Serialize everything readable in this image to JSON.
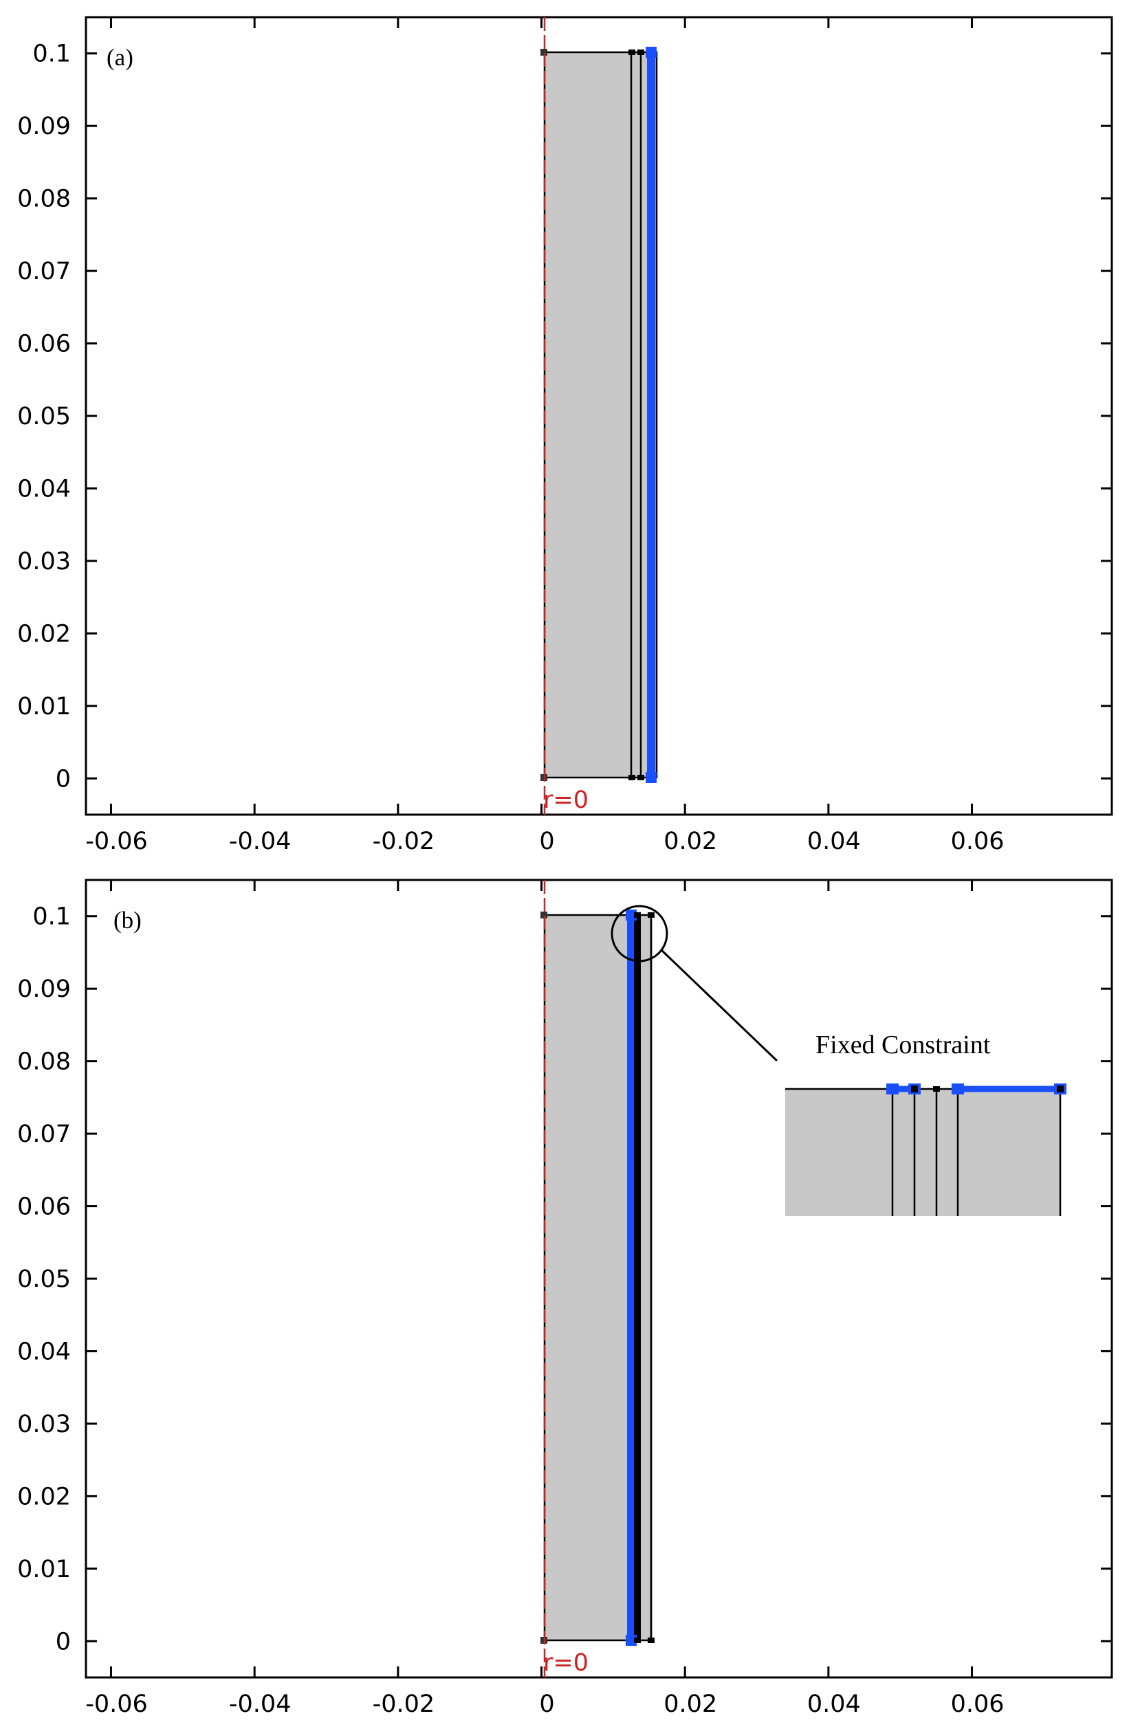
{
  "figure": {
    "x_ticks": [
      "-0.06",
      "-0.04",
      "-0.02",
      "0",
      "0.02",
      "0.04",
      "0.06"
    ],
    "x_tick_values": [
      -0.06,
      -0.04,
      -0.02,
      0,
      0.02,
      0.04,
      0.06
    ],
    "y_ticks": [
      "0.1",
      "0.09",
      "0.08",
      "0.07",
      "0.06",
      "0.05",
      "0.04",
      "0.03",
      "0.02",
      "0.01",
      "0"
    ],
    "y_tick_values": [
      0.1,
      0.09,
      0.08,
      0.07,
      0.06,
      0.05,
      0.04,
      0.03,
      0.02,
      0.01,
      0
    ],
    "x_range": [
      -0.0635,
      0.0795
    ],
    "y_range": [
      -0.005,
      0.105
    ],
    "axis_line_label": "r=0",
    "colors": {
      "domain_fill": "#c8c8c8",
      "highlight": "#1a4fff",
      "axis_line": "#cc2222",
      "edge": "#000000"
    }
  },
  "panels": [
    {
      "label": "(a)",
      "geometry": {
        "r_inner": 0,
        "r_layer1": 0.012,
        "r_layer2": 0.013,
        "r_outer": 0.0145,
        "z_min": 0,
        "z_max": 0.1
      },
      "highlighted_boundary": "r = 0.0145 (outer edge)"
    },
    {
      "label": "(b)",
      "geometry": {
        "r_inner": 0,
        "r_layer1": 0.012,
        "r_layer2": 0.013,
        "r_outer": 0.0145,
        "z_min": 0,
        "z_max": 0.1
      },
      "highlighted_boundary": "r = 0.012 (inner layer edge)",
      "callout": {
        "label": "Fixed Constraint"
      }
    }
  ]
}
